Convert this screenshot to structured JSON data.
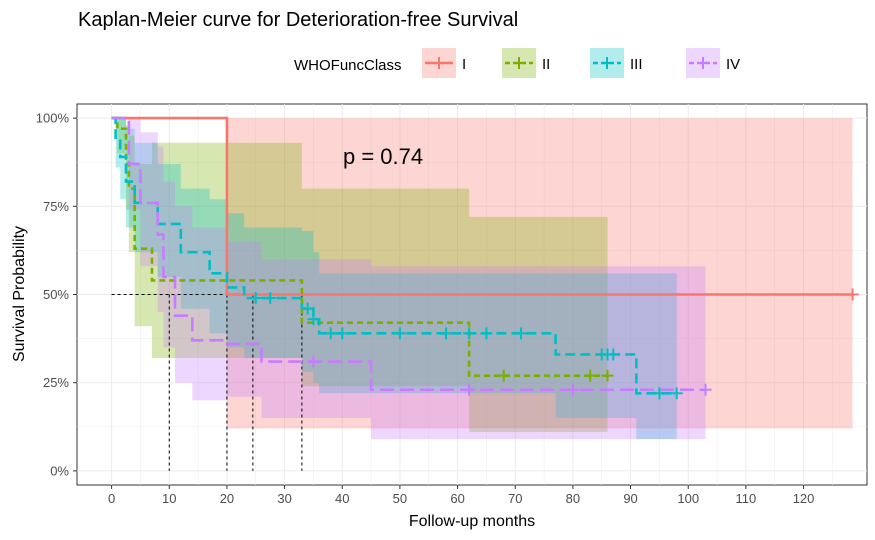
{
  "chart_data": {
    "type": "line",
    "title": "Kaplan-Meier curve for Deterioration-free Survival",
    "xlabel": "Follow-up months",
    "ylabel": "Survival Probability",
    "xlim": [
      -6,
      131
    ],
    "ylim": [
      -0.04,
      1.04
    ],
    "xticks": [
      0,
      10,
      20,
      30,
      40,
      50,
      60,
      70,
      80,
      90,
      100,
      110,
      120
    ],
    "yticks": [
      0,
      0.25,
      0.5,
      0.75,
      1.0
    ],
    "ytick_labels": [
      "0%",
      "25%",
      "50%",
      "75%",
      "100%"
    ],
    "grid": true,
    "legend": {
      "title": "WHOFuncClass",
      "position": "top"
    },
    "annotation": "p = 0.74",
    "median_lines": [
      10,
      20,
      24.5,
      33
    ],
    "series": [
      {
        "name": "I",
        "color": "#F8766D",
        "dash": "",
        "steps": [
          [
            0,
            1.0
          ],
          [
            20,
            0.5
          ],
          [
            128.5,
            0.5
          ]
        ],
        "censor": [
          128.5
        ],
        "band": [
          [
            0,
            1.0,
            1.0
          ],
          [
            20,
            0.12,
            1.0
          ],
          [
            128.5,
            0.12,
            1.0
          ]
        ]
      },
      {
        "name": "II",
        "color": "#7CAE00",
        "dash": "6,4",
        "steps": [
          [
            0,
            1.0
          ],
          [
            1,
            0.97
          ],
          [
            2.5,
            0.87
          ],
          [
            3,
            0.8
          ],
          [
            4,
            0.63
          ],
          [
            7,
            0.54
          ],
          [
            33,
            0.42
          ],
          [
            62,
            0.27
          ],
          [
            86,
            0.27
          ]
        ],
        "censor": [
          68,
          83,
          86
        ],
        "band": [
          [
            0,
            1.0,
            1.0
          ],
          [
            1,
            0.9,
            1.0
          ],
          [
            2.5,
            0.74,
            0.98
          ],
          [
            3,
            0.62,
            0.95
          ],
          [
            4,
            0.41,
            0.87
          ],
          [
            7,
            0.32,
            0.93
          ],
          [
            33,
            0.24,
            0.8
          ],
          [
            62,
            0.11,
            0.72
          ],
          [
            86,
            0.11,
            0.72
          ]
        ]
      },
      {
        "name": "III",
        "color": "#00BFC4",
        "dash": "10,5",
        "steps": [
          [
            0,
            1.0
          ],
          [
            0.7,
            0.94
          ],
          [
            1.5,
            0.89
          ],
          [
            2.5,
            0.82
          ],
          [
            4,
            0.76
          ],
          [
            8,
            0.7
          ],
          [
            12,
            0.62
          ],
          [
            17,
            0.56
          ],
          [
            20,
            0.52
          ],
          [
            23,
            0.49
          ],
          [
            33,
            0.46
          ],
          [
            35,
            0.43
          ],
          [
            36,
            0.39
          ],
          [
            77,
            0.33
          ],
          [
            91,
            0.22
          ],
          [
            98,
            0.22
          ]
        ],
        "censor": [
          25,
          27.5,
          34,
          35,
          38,
          40,
          50,
          58,
          62,
          65,
          71,
          85,
          86,
          87,
          95,
          98
        ],
        "band": [
          [
            0,
            1.0,
            1.0
          ],
          [
            0.7,
            0.86,
            1.0
          ],
          [
            1.5,
            0.77,
            1.0
          ],
          [
            2.5,
            0.69,
            0.97
          ],
          [
            4,
            0.62,
            0.93
          ],
          [
            8,
            0.55,
            0.87
          ],
          [
            12,
            0.46,
            0.8
          ],
          [
            17,
            0.39,
            0.77
          ],
          [
            20,
            0.35,
            0.73
          ],
          [
            23,
            0.32,
            0.69
          ],
          [
            33,
            0.28,
            0.68
          ],
          [
            35,
            0.25,
            0.62
          ],
          [
            36,
            0.22,
            0.56
          ],
          [
            77,
            0.15,
            0.56
          ],
          [
            91,
            0.09,
            0.56
          ],
          [
            98,
            0.09,
            0.56
          ]
        ]
      },
      {
        "name": "IV",
        "color": "#C77CFF",
        "dash": "14,6",
        "steps": [
          [
            0,
            1.0
          ],
          [
            3,
            0.87
          ],
          [
            5,
            0.76
          ],
          [
            8,
            0.67
          ],
          [
            9,
            0.55
          ],
          [
            11,
            0.44
          ],
          [
            14,
            0.37
          ],
          [
            20,
            0.36
          ],
          [
            26,
            0.31
          ],
          [
            45,
            0.23
          ],
          [
            103,
            0.23
          ]
        ],
        "censor": [
          35,
          62,
          80,
          103
        ],
        "band": [
          [
            0,
            1.0,
            1.0
          ],
          [
            3,
            0.74,
            1.0
          ],
          [
            5,
            0.58,
            0.96
          ],
          [
            8,
            0.45,
            0.92
          ],
          [
            9,
            0.35,
            0.82
          ],
          [
            11,
            0.25,
            0.75
          ],
          [
            14,
            0.2,
            0.69
          ],
          [
            20,
            0.21,
            0.65
          ],
          [
            26,
            0.15,
            0.6
          ],
          [
            45,
            0.09,
            0.58
          ],
          [
            103,
            0.09,
            0.58
          ]
        ]
      }
    ]
  }
}
